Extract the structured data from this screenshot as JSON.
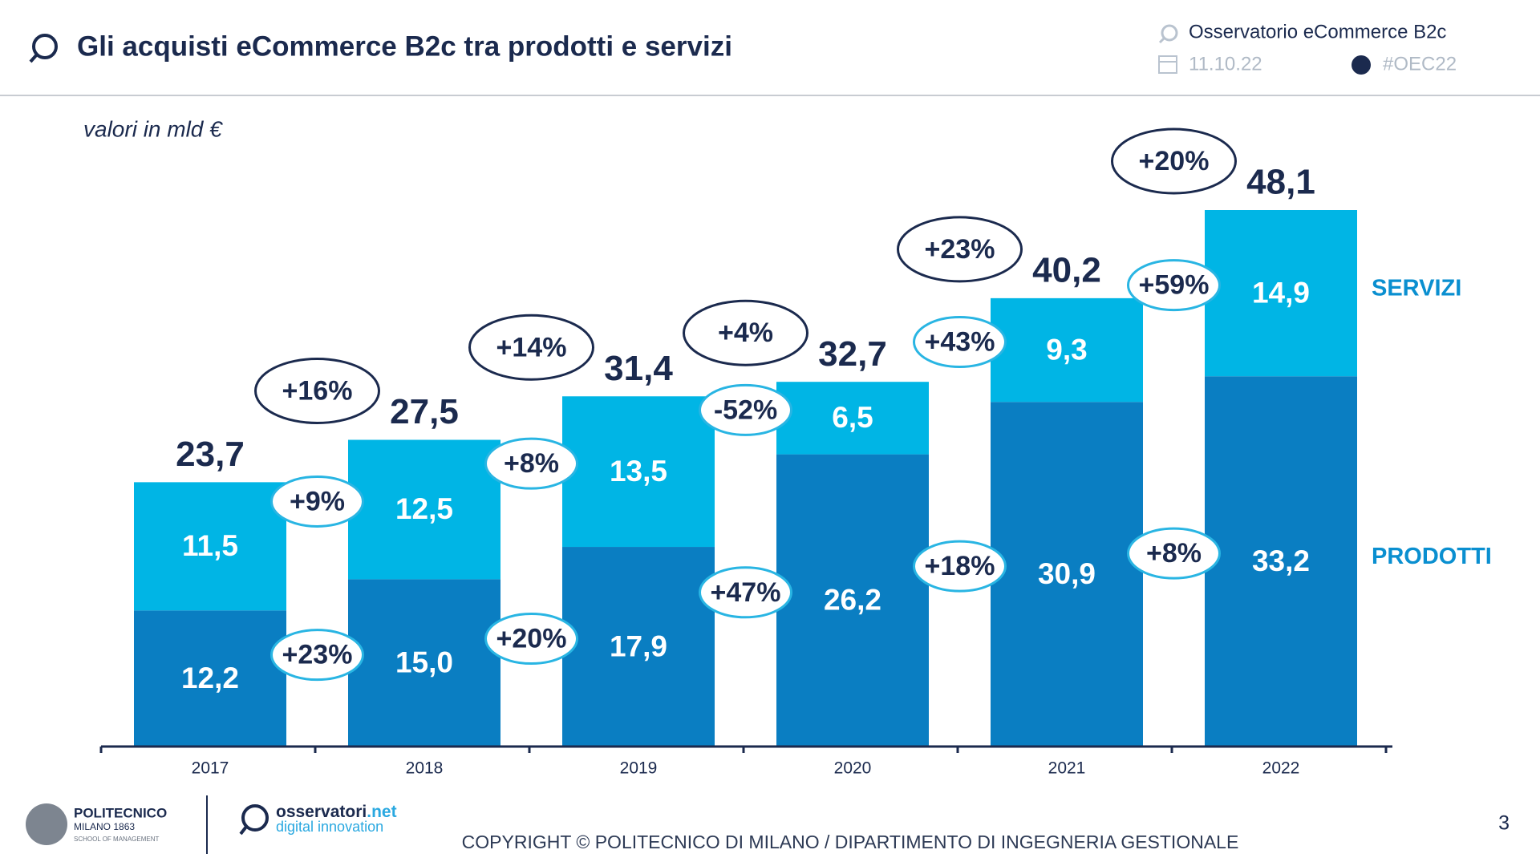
{
  "slide": {
    "title": "Gli acquisti eCommerce B2c tra prodotti e servizi",
    "source": "Osservatorio eCommerce B2c",
    "date": "11.10.22",
    "hashtag": "#OEC22",
    "footer": {
      "logo_name": "POLITECNICO",
      "logo_city": "MILANO 1863",
      "logo_school": "SCHOOL OF MANAGEMENT",
      "brand": "osservatori",
      "brand_suffix": ".net",
      "brand_tagline": "digital innovation",
      "copyright": "COPYRIGHT © POLITECNICO DI MILANO / DIPARTIMENTO DI INGEGNERIA GESTIONALE",
      "page_number": "3"
    }
  },
  "chart_data": {
    "type": "stacked-bar",
    "subtitle": "valori in mld €",
    "categories": [
      "2017",
      "2018",
      "2019",
      "2020",
      "2021",
      "2022"
    ],
    "series": [
      {
        "name": "PRODOTTI",
        "color": "#0a7ec2",
        "label_color": "#0a8fd0",
        "values": [
          12.2,
          15.0,
          17.9,
          26.2,
          30.9,
          33.2
        ],
        "value_labels": [
          "12,2",
          "15,0",
          "17,9",
          "26,2",
          "30,9",
          "33,2"
        ],
        "growth_labels": [
          "+23%",
          "+20%",
          "+47%",
          "+18%",
          "+8%"
        ]
      },
      {
        "name": "SERVIZI",
        "color": "#00b5e5",
        "label_color": "#0a8fd0",
        "values": [
          11.5,
          12.5,
          13.5,
          6.5,
          9.3,
          14.9
        ],
        "value_labels": [
          "11,5",
          "12,5",
          "13,5",
          "6,5",
          "9,3",
          "14,9"
        ],
        "growth_labels": [
          "+9%",
          "+8%",
          "-52%",
          "+43%",
          "+59%"
        ]
      }
    ],
    "totals": [
      23.7,
      27.5,
      31.4,
      32.7,
      40.2,
      48.1
    ],
    "total_labels": [
      "23,7",
      "27,5",
      "31,4",
      "32,7",
      "40,2",
      "48,1"
    ],
    "total_growth_labels": [
      "+16%",
      "+14%",
      "+4%",
      "+23%",
      "+20%"
    ]
  }
}
